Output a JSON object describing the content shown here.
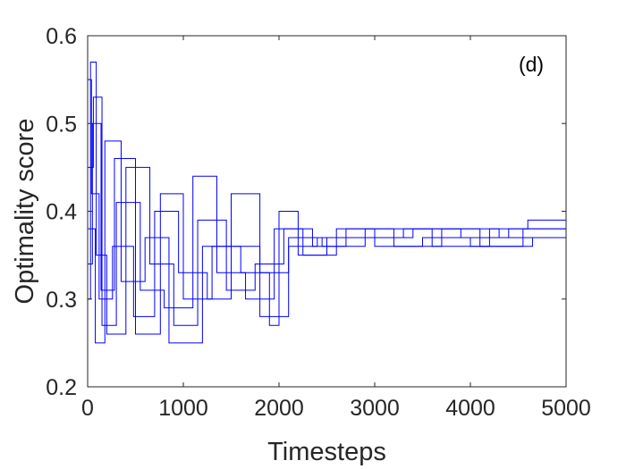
{
  "chart_data": {
    "type": "line",
    "title": "",
    "xlabel": "Timesteps",
    "ylabel": "Optimality score",
    "annotation": "(d)",
    "xlim": [
      0,
      5000
    ],
    "ylim": [
      0.2,
      0.6
    ],
    "xticks": [
      0,
      1000,
      2000,
      3000,
      4000,
      5000
    ],
    "yticks": [
      0.2,
      0.3,
      0.4,
      0.5,
      0.6
    ],
    "xtick_labels": [
      "0",
      "1000",
      "2000",
      "3000",
      "4000",
      "5000"
    ],
    "ytick_labels": [
      "0.2",
      "0.3",
      "0.4",
      "0.5",
      "0.6"
    ],
    "grid": false,
    "legend": "none",
    "line_color": "#0000ff",
    "series_style": "many overlapping step traces (individual runs)",
    "series": [
      {
        "x": [
          0,
          40,
          120,
          260,
          480,
          700,
          950,
          1250,
          1500,
          1800,
          2100,
          2400,
          2800,
          3300,
          3900,
          4400,
          4600,
          5000
        ],
        "values": [
          0.55,
          0.42,
          0.3,
          0.36,
          0.28,
          0.4,
          0.33,
          0.3,
          0.36,
          0.33,
          0.36,
          0.37,
          0.37,
          0.38,
          0.37,
          0.38,
          0.39,
          0.39
        ]
      },
      {
        "x": [
          0,
          60,
          150,
          300,
          550,
          800,
          1100,
          1350,
          1650,
          1950,
          2250,
          2600,
          3000,
          3500,
          4000,
          4550,
          5000
        ],
        "values": [
          0.45,
          0.53,
          0.27,
          0.41,
          0.31,
          0.29,
          0.44,
          0.33,
          0.3,
          0.38,
          0.35,
          0.38,
          0.36,
          0.37,
          0.36,
          0.38,
          0.39
        ]
      },
      {
        "x": [
          0,
          30,
          90,
          200,
          400,
          650,
          900,
          1150,
          1450,
          1750,
          2050,
          2350,
          2700,
          3200,
          3700,
          4300,
          5000
        ],
        "values": [
          0.3,
          0.57,
          0.35,
          0.26,
          0.45,
          0.34,
          0.27,
          0.39,
          0.31,
          0.34,
          0.38,
          0.36,
          0.38,
          0.36,
          0.38,
          0.37,
          0.39
        ]
      },
      {
        "x": [
          0,
          80,
          180,
          350,
          600,
          850,
          1200,
          1500,
          1800,
          2100,
          2450,
          2900,
          3400,
          4100,
          4650,
          5000
        ],
        "values": [
          0.38,
          0.25,
          0.48,
          0.32,
          0.37,
          0.25,
          0.36,
          0.42,
          0.28,
          0.37,
          0.36,
          0.37,
          0.38,
          0.36,
          0.37,
          0.39
        ]
      },
      {
        "x": [
          0,
          50,
          140,
          280,
          500,
          760,
          1000,
          1300,
          1600,
          1900,
          2000,
          2200,
          2500,
          2900,
          3600,
          4200,
          5000
        ],
        "values": [
          0.34,
          0.5,
          0.31,
          0.46,
          0.26,
          0.42,
          0.3,
          0.36,
          0.33,
          0.27,
          0.4,
          0.35,
          0.37,
          0.38,
          0.36,
          0.38,
          0.39
        ]
      }
    ]
  }
}
